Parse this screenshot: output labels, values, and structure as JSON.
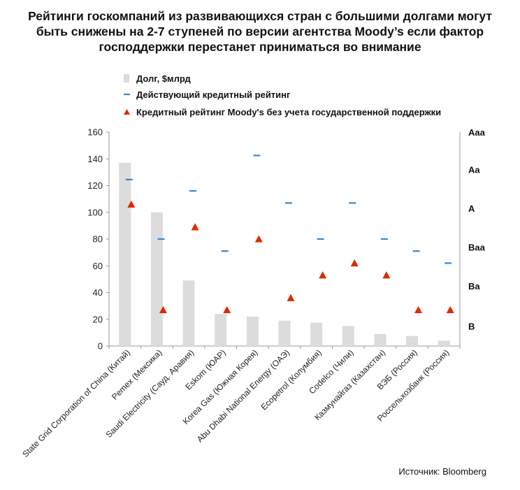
{
  "title": "Рейтинги госкомпаний из развивающихся стран с большими долгами могут быть снижены на 2-7 ступеней по версии агентства Moody’s если фактор господдержки перестанет приниматься во внимание",
  "source": "Источник: Bloomberg",
  "colors": {
    "bar": "#dcdcdc",
    "current": "#3a86d4",
    "standalone": "#dd2a00"
  },
  "chart_data": {
    "type": "bar",
    "title": "Рейтинги госкомпаний из развивающихся стран с большими долгами могут быть снижены на 2-7 ступеней по версии агентства Moody’s если фактор господдержки перестанет приниматься во внимание",
    "categories": [
      "State Grid Corporation of China (Китай)",
      "Pemex (Мексика)",
      "Saudi Electricity (Сауд. Аравия)",
      "Eskom (ЮАР)",
      "Korea Gas (Южная Корея)",
      "Abu Dhabi National Energy (ОАЭ)",
      "Ecopetrol (Колумбия)",
      "Codelco (Чили)",
      "Казмунайгаз (Казахстан)",
      "ВЭБ (Россия)",
      "Россельхозбанк (Россия)"
    ],
    "series": [
      {
        "name": "Долг, $млрд",
        "kind": "bar",
        "values": [
          137,
          100,
          49,
          24,
          22,
          19,
          17.5,
          15,
          9,
          7.5,
          4
        ]
      },
      {
        "name": "Действующий кредитный рейтинг",
        "kind": "dash",
        "values": [
          124.5,
          80,
          116,
          71,
          142.5,
          107,
          80,
          107,
          80,
          71,
          62
        ]
      },
      {
        "name": "Кредитный рейтинг Moody's без учета государственной поддержки",
        "kind": "triangle",
        "values": [
          106,
          27,
          89,
          27,
          80,
          36,
          53,
          62,
          53,
          27,
          27
        ]
      }
    ],
    "yticks": [
      "0",
      "20",
      "40",
      "60",
      "80",
      "100",
      "120",
      "140",
      "160"
    ],
    "ylim": [
      0,
      160
    ],
    "right_axis_labels": [
      {
        "label": "Aaa",
        "value": 160
      },
      {
        "label": "Aa",
        "value": 132
      },
      {
        "label": "A",
        "value": 103
      },
      {
        "label": "Baa",
        "value": 74
      },
      {
        "label": "Ba",
        "value": 45
      },
      {
        "label": "B",
        "value": 15
      }
    ],
    "legend_position": "top"
  }
}
